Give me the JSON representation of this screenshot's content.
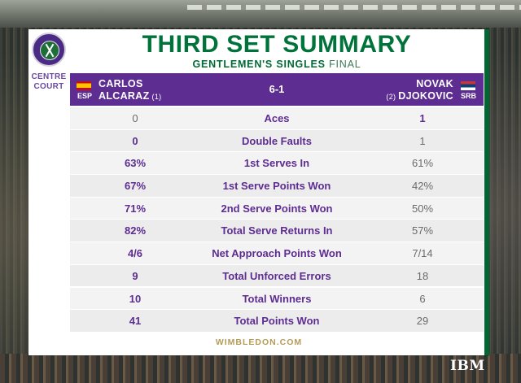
{
  "title": "THIRD SET SUMMARY",
  "subtitle": {
    "event": "GENTLEMEN'S SINGLES",
    "stage": "FINAL"
  },
  "venue": {
    "line1": "CENTRE",
    "line2": "COURT"
  },
  "players": {
    "left": {
      "first": "CARLOS",
      "last": "ALCARAZ",
      "seed": "(1)",
      "country": "ESP"
    },
    "right": {
      "first": "NOVAK",
      "last": "DJOKOVIC",
      "seed": "(2)",
      "country": "SRB"
    }
  },
  "score": "6-1",
  "stats": [
    {
      "label": "Aces",
      "left": "0",
      "right": "1",
      "leader": "right"
    },
    {
      "label": "Double Faults",
      "left": "0",
      "right": "1",
      "leader": "left"
    },
    {
      "label": "1st Serves In",
      "left": "63%",
      "right": "61%",
      "leader": "left"
    },
    {
      "label": "1st Serve Points Won",
      "left": "67%",
      "right": "42%",
      "leader": "left"
    },
    {
      "label": "2nd Serve Points Won",
      "left": "71%",
      "right": "50%",
      "leader": "left"
    },
    {
      "label": "Total Serve Returns In",
      "left": "82%",
      "right": "57%",
      "leader": "left"
    },
    {
      "label": "Net Approach Points Won",
      "left": "4/6",
      "right": "7/14",
      "leader": "left"
    },
    {
      "label": "Total Unforced Errors",
      "left": "9",
      "right": "18",
      "leader": "left"
    },
    {
      "label": "Total Winners",
      "left": "10",
      "right": "6",
      "leader": "left"
    },
    {
      "label": "Total Points Won",
      "left": "41",
      "right": "29",
      "leader": "left"
    }
  ],
  "footer": "WIMBLEDON.COM",
  "sponsor": "IBM",
  "colors": {
    "purple": "#5d2d91",
    "green": "#00733b",
    "gold": "#b69c56"
  }
}
